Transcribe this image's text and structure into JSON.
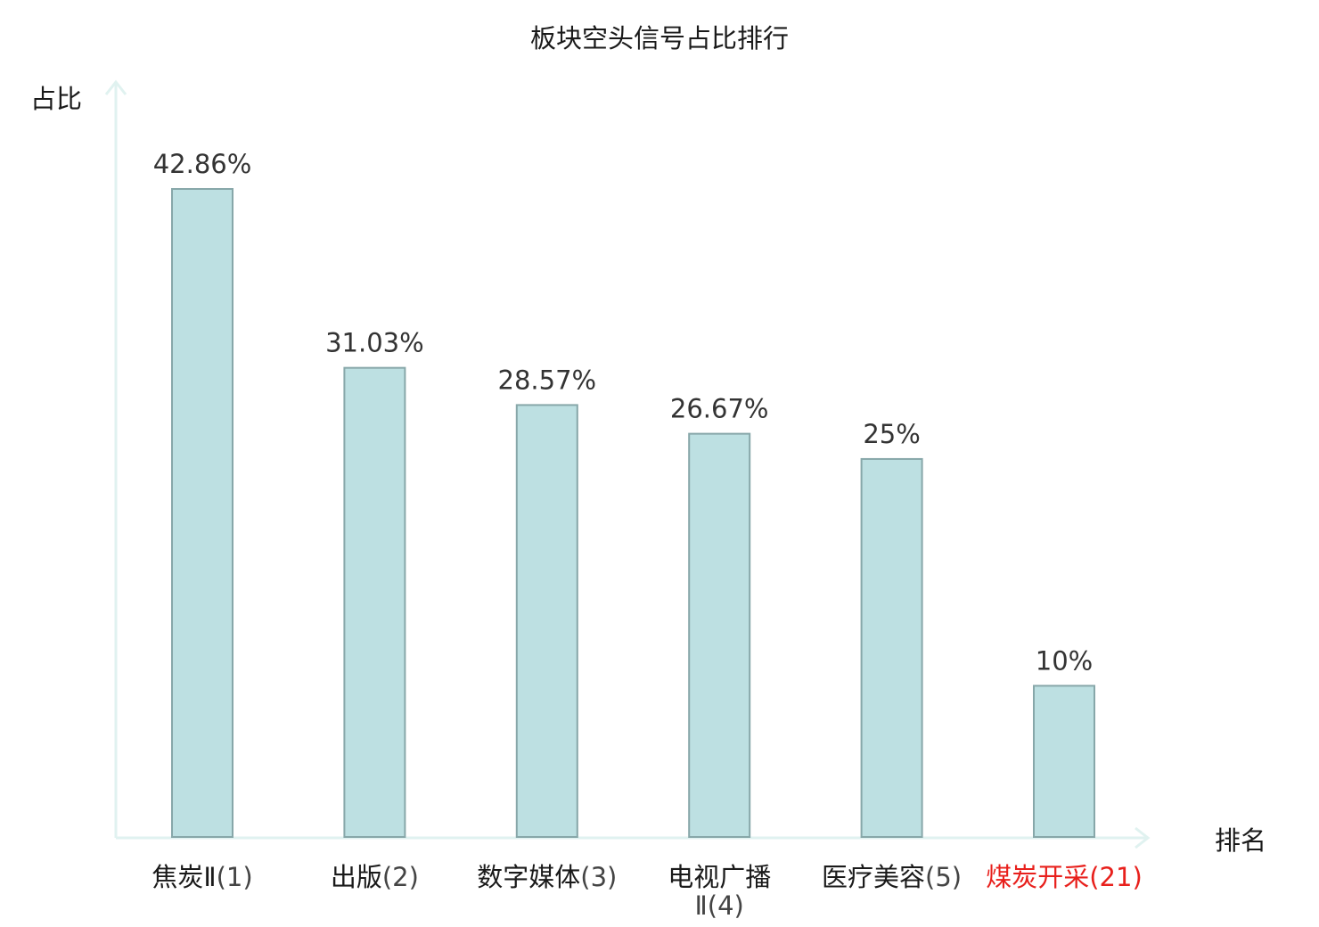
{
  "chart_data": {
    "type": "bar",
    "title": "板块空头信号占比排行",
    "xlabel": "排名",
    "ylabel": "占比",
    "ylim": [
      0,
      50
    ],
    "grid": false,
    "categories": [
      {
        "name": "焦炭Ⅱ",
        "rank": "(1)",
        "highlight": false
      },
      {
        "name": "出版",
        "rank": "(2)",
        "highlight": false
      },
      {
        "name": "数字媒体",
        "rank": "(3)",
        "highlight": false
      },
      {
        "name": "电视广播Ⅱ",
        "rank": "(4)",
        "highlight": false
      },
      {
        "name": "医疗美容",
        "rank": "(5)",
        "highlight": false
      },
      {
        "name": "煤炭开采",
        "rank": "(21)",
        "highlight": true
      }
    ],
    "values": [
      42.86,
      31.03,
      28.57,
      26.67,
      25,
      10
    ],
    "value_labels": [
      "42.86%",
      "31.03%",
      "28.57%",
      "26.67%",
      "25%",
      "10%"
    ]
  },
  "colors": {
    "bar_fill": "#bde0e2",
    "bar_stroke": "#87a7a9",
    "axis": "#e0f2f0",
    "text": "#1a1a1a",
    "value_text": "#333333",
    "rank_text": "#444444",
    "highlight": "#e8201c"
  }
}
